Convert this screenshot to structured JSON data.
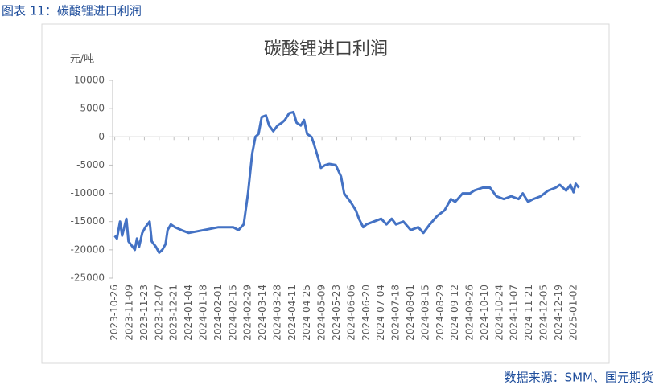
{
  "caption": "图表 11：碳酸锂进口利润",
  "source": "数据来源：SMM、国元期货",
  "chart_data": {
    "type": "line",
    "title": "碳酸锂进口利润",
    "y_label": "元/吨",
    "xlim": [
      "2023-10-24",
      "2025-01-09"
    ],
    "xticks": [
      "2023-10-26",
      "2023-11-09",
      "2023-11-23",
      "2023-12-07",
      "2023-12-21",
      "2024-01-04",
      "2024-01-18",
      "2024-02-01",
      "2024-02-15",
      "2024-02-29",
      "2024-03-14",
      "2024-03-28",
      "2024-04-11",
      "2024-04-25",
      "2024-05-09",
      "2024-05-23",
      "2024-06-06",
      "2024-06-20",
      "2024-07-04",
      "2024-07-18",
      "2024-08-01",
      "2024-08-15",
      "2024-08-29",
      "2024-09-12",
      "2024-09-26",
      "2024-10-10",
      "2024-10-24",
      "2024-11-07",
      "2024-11-21",
      "2024-12-05",
      "2024-12-19",
      "2025-01-02"
    ],
    "ylim": [
      -25000,
      10000
    ],
    "yticks": [
      10000,
      5000,
      0,
      -5000,
      -10000,
      -15000,
      -20000,
      -25000
    ],
    "series": [
      {
        "name": "碳酸锂进口利润",
        "color": "#4472c4",
        "x": [
          "2023-10-26",
          "2023-10-28",
          "2023-10-31",
          "2023-11-02",
          "2023-11-06",
          "2023-11-08",
          "2023-11-12",
          "2023-11-14",
          "2023-11-16",
          "2023-11-18",
          "2023-11-21",
          "2023-11-24",
          "2023-11-28",
          "2023-11-30",
          "2023-12-04",
          "2023-12-07",
          "2023-12-10",
          "2023-12-13",
          "2023-12-15",
          "2023-12-18",
          "2023-12-22",
          "2023-12-28",
          "2024-01-04",
          "2024-01-18",
          "2024-02-01",
          "2024-02-15",
          "2024-02-20",
          "2024-02-25",
          "2024-02-29",
          "2024-03-04",
          "2024-03-07",
          "2024-03-10",
          "2024-03-13",
          "2024-03-17",
          "2024-03-20",
          "2024-03-24",
          "2024-03-28",
          "2024-04-01",
          "2024-04-04",
          "2024-04-08",
          "2024-04-12",
          "2024-04-15",
          "2024-04-19",
          "2024-04-22",
          "2024-04-25",
          "2024-04-29",
          "2024-05-01",
          "2024-05-05",
          "2024-05-08",
          "2024-05-12",
          "2024-05-16",
          "2024-05-22",
          "2024-05-27",
          "2024-05-30",
          "2024-06-05",
          "2024-06-10",
          "2024-06-13",
          "2024-06-17",
          "2024-06-20",
          "2024-06-27",
          "2024-07-04",
          "2024-07-09",
          "2024-07-14",
          "2024-07-18",
          "2024-07-25",
          "2024-08-01",
          "2024-08-08",
          "2024-08-13",
          "2024-08-19",
          "2024-08-26",
          "2024-09-02",
          "2024-09-08",
          "2024-09-12",
          "2024-09-19",
          "2024-09-26",
          "2024-09-30",
          "2024-10-08",
          "2024-10-15",
          "2024-10-21",
          "2024-10-28",
          "2024-11-04",
          "2024-11-11",
          "2024-11-15",
          "2024-11-20",
          "2024-11-25",
          "2024-12-02",
          "2024-12-09",
          "2024-12-16",
          "2024-12-20",
          "2024-12-26",
          "2024-12-30",
          "2025-01-02",
          "2025-01-04",
          "2025-01-07"
        ],
        "values": [
          -17500,
          -18000,
          -15000,
          -17500,
          -14500,
          -18500,
          -19500,
          -20000,
          -18000,
          -19500,
          -17000,
          -16000,
          -15000,
          -18500,
          -19500,
          -20500,
          -20000,
          -19000,
          -16500,
          -15500,
          -16000,
          -16500,
          -17000,
          -16500,
          -16000,
          -16000,
          -16500,
          -15500,
          -10000,
          -3000,
          0,
          500,
          3500,
          3800,
          2000,
          1000,
          2000,
          2500,
          3000,
          4200,
          4400,
          2500,
          2000,
          3000,
          500,
          0,
          -1000,
          -3500,
          -5500,
          -5000,
          -4800,
          -5000,
          -7000,
          -10000,
          -11500,
          -13000,
          -14500,
          -16000,
          -15500,
          -15000,
          -14500,
          -15500,
          -14500,
          -15500,
          -15000,
          -16500,
          -16000,
          -17000,
          -15500,
          -14000,
          -13000,
          -11000,
          -11500,
          -10000,
          -10000,
          -9500,
          -9000,
          -9000,
          -10500,
          -11000,
          -10500,
          -11000,
          -10000,
          -11500,
          -11000,
          -10500,
          -9500,
          -9000,
          -8500,
          -9500,
          -8500,
          -9800,
          -8300,
          -9000
        ]
      }
    ]
  }
}
